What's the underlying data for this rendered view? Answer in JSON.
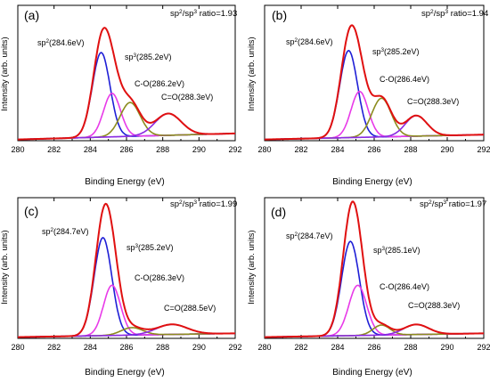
{
  "chart_data": [
    {
      "type": "line",
      "panel_label": "(a)",
      "ratio_text": "sp²/sp³ ratio=1.93",
      "xlabel": "Binding Energy (eV)",
      "ylabel": "Intensity (arb. units)",
      "xlim": [
        280,
        292
      ],
      "ylim": [
        0,
        1.12
      ],
      "xticks": [
        "280",
        "282",
        "284",
        "286",
        "288",
        "290",
        "292"
      ],
      "baseline": {
        "start": 0.01,
        "end": 0.06
      },
      "peaks": [
        {
          "name": "sp²(284.6eV)",
          "center": 284.6,
          "height": 0.7,
          "fwhm": 1.15,
          "color": "#1f1fd6"
        },
        {
          "name": "sp³(285.2eV)",
          "center": 285.2,
          "height": 0.36,
          "fwhm": 1.1,
          "color": "#e83ae8"
        },
        {
          "name": "C-O(286.2eV)",
          "center": 286.2,
          "height": 0.28,
          "fwhm": 1.3,
          "color": "#8c8c1e"
        },
        {
          "name": "C=O(288.3eV)",
          "center": 288.3,
          "height": 0.18,
          "fwhm": 1.7,
          "color": "#8a2be2"
        }
      ],
      "envelope": {
        "color": "#e01010"
      },
      "labels_text": {
        "sp2": "sp²(284.6eV)",
        "sp3": "sp³(285.2eV)",
        "co": "C-O(286.2eV)",
        "c_o": "C=O(288.3eV)"
      }
    },
    {
      "type": "line",
      "panel_label": "(b)",
      "ratio_text": "sp²/sp³ ratio=1.94",
      "xlabel": "Binding Energy (eV)",
      "ylabel": "Intensity (arb. units)",
      "xlim": [
        280,
        292
      ],
      "ylim": [
        0,
        1.12
      ],
      "xticks": [
        "280",
        "282",
        "284",
        "286",
        "288",
        "290",
        "292"
      ],
      "baseline": {
        "start": 0.01,
        "end": 0.05
      },
      "peaks": [
        {
          "name": "sp²(284.6eV)",
          "center": 284.6,
          "height": 0.72,
          "fwhm": 1.15,
          "color": "#1f1fd6"
        },
        {
          "name": "sp³(285.2eV)",
          "center": 285.2,
          "height": 0.38,
          "fwhm": 1.1,
          "color": "#e83ae8"
        },
        {
          "name": "C-O(286.4eV)",
          "center": 286.4,
          "height": 0.32,
          "fwhm": 1.25,
          "color": "#8c8c1e"
        },
        {
          "name": "C=O(288.3eV)",
          "center": 288.3,
          "height": 0.17,
          "fwhm": 1.4,
          "color": "#8a2be2"
        }
      ],
      "envelope": {
        "color": "#e01010"
      },
      "labels_text": {
        "sp2": "sp²(284.6eV)",
        "sp3": "sp³(285.2eV)",
        "co": "C-O(286.4eV)",
        "c_o": "C=O(288.3eV)"
      }
    },
    {
      "type": "line",
      "panel_label": "(c)",
      "ratio_text": "sp²/sp³ ratio=1.99",
      "xlabel": "Binding Energy (eV)",
      "ylabel": "Intensity (arb. units)",
      "xlim": [
        280,
        292
      ],
      "ylim": [
        0,
        1.12
      ],
      "xticks": [
        "280",
        "282",
        "284",
        "286",
        "288",
        "290",
        "292"
      ],
      "baseline": {
        "start": 0.01,
        "end": 0.04
      },
      "peaks": [
        {
          "name": "sp²(284.7eV)",
          "center": 284.7,
          "height": 0.78,
          "fwhm": 1.15,
          "color": "#1f1fd6"
        },
        {
          "name": "sp³(285.2eV)",
          "center": 285.2,
          "height": 0.4,
          "fwhm": 1.1,
          "color": "#e83ae8"
        },
        {
          "name": "C-O(286.3eV)",
          "center": 286.3,
          "height": 0.06,
          "fwhm": 1.4,
          "color": "#8c8c1e"
        },
        {
          "name": "C=O(288.5eV)",
          "center": 288.5,
          "height": 0.08,
          "fwhm": 2.0,
          "color": "#8a2be2"
        }
      ],
      "envelope": {
        "color": "#e01010"
      },
      "labels_text": {
        "sp2": "sp²(284.7eV)",
        "sp3": "sp³(285.2eV)",
        "co": "C-O(286.3eV)",
        "c_o": "C=O(288.5eV)"
      }
    },
    {
      "type": "line",
      "panel_label": "(d)",
      "ratio_text": "sp²/sp³ ratio=1.97",
      "xlabel": "Binding Energy (eV)",
      "ylabel": "Intensity (arb. units)",
      "xlim": [
        280,
        292
      ],
      "ylim": [
        0,
        1.12
      ],
      "xticks": [
        "280",
        "282",
        "284",
        "286",
        "288",
        "290",
        "292"
      ],
      "baseline": {
        "start": 0.01,
        "end": 0.04
      },
      "peaks": [
        {
          "name": "sp²(284.7eV)",
          "center": 284.7,
          "height": 0.75,
          "fwhm": 1.15,
          "color": "#1f1fd6"
        },
        {
          "name": "sp³(285.1eV)",
          "center": 285.1,
          "height": 0.4,
          "fwhm": 1.15,
          "color": "#e83ae8"
        },
        {
          "name": "C-O(286.4eV)",
          "center": 286.4,
          "height": 0.08,
          "fwhm": 1.1,
          "color": "#8c8c1e"
        },
        {
          "name": "C=O(288.3eV)",
          "center": 288.3,
          "height": 0.08,
          "fwhm": 1.6,
          "color": "#8a2be2"
        }
      ],
      "envelope": {
        "color": "#e01010"
      },
      "labels_text": {
        "sp2": "sp²(284.7eV)",
        "sp3": "sp³(285.1eV)",
        "co": "C-O(286.4eV)",
        "c_o": "C=O(288.3eV)"
      }
    }
  ]
}
